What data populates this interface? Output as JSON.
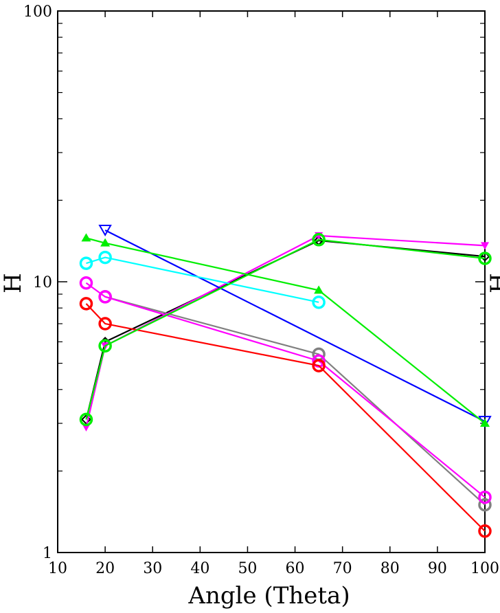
{
  "chart_data": {
    "type": "line",
    "title": "",
    "xlabel": "Angle (Theta)",
    "ylabel": "H",
    "right_label_fragment": "H",
    "xlim": [
      10,
      100
    ],
    "ylim": [
      1,
      100
    ],
    "yscale": "log",
    "grid": false,
    "x_ticks": [
      "10",
      "20",
      "30",
      "40",
      "50",
      "60",
      "70",
      "80",
      "90",
      "100"
    ],
    "x_tick_values": [
      10,
      20,
      30,
      40,
      50,
      60,
      70,
      80,
      90,
      100
    ],
    "y_ticks": [
      "1",
      "10",
      "100"
    ],
    "y_tick_values": [
      1,
      10,
      100
    ],
    "series": [
      {
        "color": "#000000",
        "marker": "diamond",
        "x": [
          16,
          20,
          65,
          100
        ],
        "y": [
          3.1,
          6.0,
          14.2,
          12.4
        ]
      },
      {
        "color": "#808080",
        "marker": "circle",
        "x": [
          20,
          65,
          100
        ],
        "y": [
          8.8,
          5.4,
          1.5
        ]
      },
      {
        "color": "#ff00ff",
        "marker": "triangle-down",
        "x": [
          16,
          20,
          65,
          100
        ],
        "y": [
          2.9,
          5.8,
          14.8,
          13.6
        ]
      },
      {
        "color": "#ff00ff",
        "marker": "circle",
        "x": [
          16,
          20,
          65,
          100
        ],
        "y": [
          9.9,
          8.8,
          5.1,
          1.6
        ]
      },
      {
        "color": "#0000ff",
        "marker": "triangle-down-open",
        "x": [
          20,
          100
        ],
        "y": [
          15.5,
          3.05
        ]
      },
      {
        "color": "#00ee00",
        "marker": "triangle-up",
        "x": [
          16,
          20,
          65,
          100
        ],
        "y": [
          14.5,
          13.9,
          9.3,
          3.0
        ]
      },
      {
        "color": "#00ffff",
        "marker": "circle",
        "x": [
          16,
          20,
          65
        ],
        "y": [
          11.7,
          12.3,
          8.4
        ]
      },
      {
        "color": "#ff0000",
        "marker": "circle",
        "x": [
          16,
          20,
          65,
          100
        ],
        "y": [
          8.3,
          7.0,
          4.9,
          1.2
        ]
      },
      {
        "color": "#00ee00",
        "marker": "circle",
        "x": [
          16,
          20,
          65,
          100
        ],
        "y": [
          3.1,
          5.8,
          14.3,
          12.2
        ]
      }
    ]
  }
}
